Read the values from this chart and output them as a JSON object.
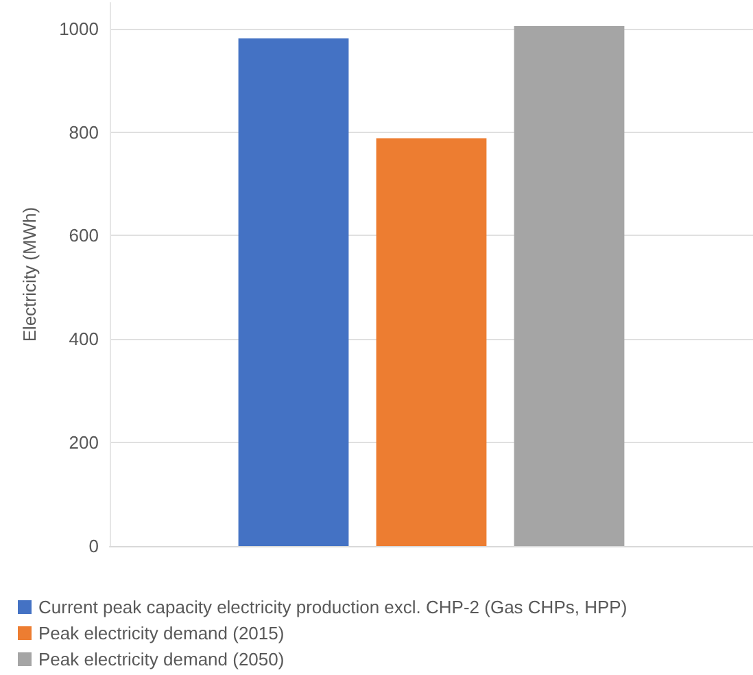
{
  "chart_data": {
    "type": "bar",
    "ylabel": "Electricity (MWh)",
    "categories": [
      null
    ],
    "series": [
      {
        "name": "Current peak capacity electricity production excl. CHP-2 (Gas CHPs, HPP)",
        "color": "#4472c4",
        "values": [
          981
        ]
      },
      {
        "name": "Peak electricity demand (2015)",
        "color": "#ed7d31",
        "values": [
          788
        ]
      },
      {
        "name": "Peak electricity demand (2050)",
        "color": "#a5a5a5",
        "values": [
          1005
        ]
      }
    ],
    "ylim": [
      0,
      1050
    ],
    "yticks": [
      0,
      200,
      400,
      600,
      800,
      1000
    ],
    "grid": "y",
    "legend": "bottom"
  }
}
